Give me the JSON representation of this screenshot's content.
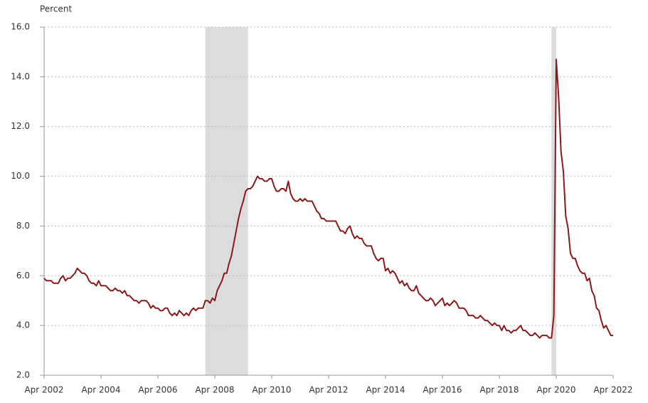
{
  "chart_data": {
    "type": "line",
    "y_axis_label": "Percent",
    "ylim": [
      2,
      16
    ],
    "yticks": [
      {
        "value": 2,
        "label": "2.0"
      },
      {
        "value": 4,
        "label": "4.0"
      },
      {
        "value": 6,
        "label": "6.0"
      },
      {
        "value": 8,
        "label": "8.0"
      },
      {
        "value": 10,
        "label": "10.0"
      },
      {
        "value": 12,
        "label": "12.0"
      },
      {
        "value": 14,
        "label": "14.0"
      },
      {
        "value": 16,
        "label": "16.0"
      }
    ],
    "xlim": [
      "2002-04",
      "2022-04"
    ],
    "xticks": [
      {
        "value": "2002-04",
        "label": "Apr 2002"
      },
      {
        "value": "2004-04",
        "label": "Apr 2004"
      },
      {
        "value": "2006-04",
        "label": "Apr 2006"
      },
      {
        "value": "2008-04",
        "label": "Apr 2008"
      },
      {
        "value": "2010-04",
        "label": "Apr 2010"
      },
      {
        "value": "2012-04",
        "label": "Apr 2012"
      },
      {
        "value": "2014-04",
        "label": "Apr 2014"
      },
      {
        "value": "2016-04",
        "label": "Apr 2016"
      },
      {
        "value": "2018-04",
        "label": "Apr 2018"
      },
      {
        "value": "2020-04",
        "label": "Apr 2020"
      },
      {
        "value": "2022-04",
        "label": "Apr 2022"
      }
    ],
    "grid": true,
    "recessions": [
      [
        "2007-12",
        "2009-06"
      ],
      [
        "2020-02",
        "2020-04"
      ]
    ],
    "recession_color": "#dcdcdc",
    "x": [
      "2002-04",
      "2002-05",
      "2002-06",
      "2002-07",
      "2002-08",
      "2002-09",
      "2002-10",
      "2002-11",
      "2002-12",
      "2003-01",
      "2003-02",
      "2003-03",
      "2003-04",
      "2003-05",
      "2003-06",
      "2003-07",
      "2003-08",
      "2003-09",
      "2003-10",
      "2003-11",
      "2003-12",
      "2004-01",
      "2004-02",
      "2004-03",
      "2004-04",
      "2004-05",
      "2004-06",
      "2004-07",
      "2004-08",
      "2004-09",
      "2004-10",
      "2004-11",
      "2004-12",
      "2005-01",
      "2005-02",
      "2005-03",
      "2005-04",
      "2005-05",
      "2005-06",
      "2005-07",
      "2005-08",
      "2005-09",
      "2005-10",
      "2005-11",
      "2005-12",
      "2006-01",
      "2006-02",
      "2006-03",
      "2006-04",
      "2006-05",
      "2006-06",
      "2006-07",
      "2006-08",
      "2006-09",
      "2006-10",
      "2006-11",
      "2006-12",
      "2007-01",
      "2007-02",
      "2007-03",
      "2007-04",
      "2007-05",
      "2007-06",
      "2007-07",
      "2007-08",
      "2007-09",
      "2007-10",
      "2007-11",
      "2007-12",
      "2008-01",
      "2008-02",
      "2008-03",
      "2008-04",
      "2008-05",
      "2008-06",
      "2008-07",
      "2008-08",
      "2008-09",
      "2008-10",
      "2008-11",
      "2008-12",
      "2009-01",
      "2009-02",
      "2009-03",
      "2009-04",
      "2009-05",
      "2009-06",
      "2009-07",
      "2009-08",
      "2009-09",
      "2009-10",
      "2009-11",
      "2009-12",
      "2010-01",
      "2010-02",
      "2010-03",
      "2010-04",
      "2010-05",
      "2010-06",
      "2010-07",
      "2010-08",
      "2010-09",
      "2010-10",
      "2010-11",
      "2010-12",
      "2011-01",
      "2011-02",
      "2011-03",
      "2011-04",
      "2011-05",
      "2011-06",
      "2011-07",
      "2011-08",
      "2011-09",
      "2011-10",
      "2011-11",
      "2011-12",
      "2012-01",
      "2012-02",
      "2012-03",
      "2012-04",
      "2012-05",
      "2012-06",
      "2012-07",
      "2012-08",
      "2012-09",
      "2012-10",
      "2012-11",
      "2012-12",
      "2013-01",
      "2013-02",
      "2013-03",
      "2013-04",
      "2013-05",
      "2013-06",
      "2013-07",
      "2013-08",
      "2013-09",
      "2013-10",
      "2013-11",
      "2013-12",
      "2014-01",
      "2014-02",
      "2014-03",
      "2014-04",
      "2014-05",
      "2014-06",
      "2014-07",
      "2014-08",
      "2014-09",
      "2014-10",
      "2014-11",
      "2014-12",
      "2015-01",
      "2015-02",
      "2015-03",
      "2015-04",
      "2015-05",
      "2015-06",
      "2015-07",
      "2015-08",
      "2015-09",
      "2015-10",
      "2015-11",
      "2015-12",
      "2016-01",
      "2016-02",
      "2016-03",
      "2016-04",
      "2016-05",
      "2016-06",
      "2016-07",
      "2016-08",
      "2016-09",
      "2016-10",
      "2016-11",
      "2016-12",
      "2017-01",
      "2017-02",
      "2017-03",
      "2017-04",
      "2017-05",
      "2017-06",
      "2017-07",
      "2017-08",
      "2017-09",
      "2017-10",
      "2017-11",
      "2017-12",
      "2018-01",
      "2018-02",
      "2018-03",
      "2018-04",
      "2018-05",
      "2018-06",
      "2018-07",
      "2018-08",
      "2018-09",
      "2018-10",
      "2018-11",
      "2018-12",
      "2019-01",
      "2019-02",
      "2019-03",
      "2019-04",
      "2019-05",
      "2019-06",
      "2019-07",
      "2019-08",
      "2019-09",
      "2019-10",
      "2019-11",
      "2019-12",
      "2020-01",
      "2020-02",
      "2020-03",
      "2020-04",
      "2020-05",
      "2020-06",
      "2020-07",
      "2020-08",
      "2020-09",
      "2020-10",
      "2020-11",
      "2020-12",
      "2021-01",
      "2021-02",
      "2021-03",
      "2021-04",
      "2021-05",
      "2021-06",
      "2021-07",
      "2021-08",
      "2021-09",
      "2021-10",
      "2021-11",
      "2021-12",
      "2022-01",
      "2022-02",
      "2022-03",
      "2022-04"
    ],
    "series": [
      {
        "color": "#8b1a1a",
        "values": [
          5.9,
          5.8,
          5.8,
          5.8,
          5.7,
          5.7,
          5.7,
          5.9,
          6.0,
          5.8,
          5.9,
          5.9,
          6.0,
          6.1,
          6.3,
          6.2,
          6.1,
          6.1,
          6.0,
          5.8,
          5.7,
          5.7,
          5.6,
          5.8,
          5.6,
          5.6,
          5.6,
          5.5,
          5.4,
          5.4,
          5.5,
          5.4,
          5.4,
          5.3,
          5.4,
          5.2,
          5.2,
          5.1,
          5.0,
          5.0,
          4.9,
          5.0,
          5.0,
          5.0,
          4.9,
          4.7,
          4.8,
          4.7,
          4.7,
          4.6,
          4.6,
          4.7,
          4.7,
          4.5,
          4.4,
          4.5,
          4.4,
          4.6,
          4.5,
          4.4,
          4.5,
          4.4,
          4.6,
          4.7,
          4.6,
          4.7,
          4.7,
          4.7,
          5.0,
          5.0,
          4.9,
          5.1,
          5.0,
          5.4,
          5.6,
          5.8,
          6.1,
          6.1,
          6.5,
          6.8,
          7.3,
          7.8,
          8.3,
          8.7,
          9.0,
          9.4,
          9.5,
          9.5,
          9.6,
          9.8,
          10.0,
          9.9,
          9.9,
          9.8,
          9.8,
          9.9,
          9.9,
          9.6,
          9.4,
          9.4,
          9.5,
          9.5,
          9.4,
          9.8,
          9.3,
          9.1,
          9.0,
          9.0,
          9.1,
          9.0,
          9.1,
          9.0,
          9.0,
          9.0,
          8.8,
          8.6,
          8.5,
          8.3,
          8.3,
          8.2,
          8.2,
          8.2,
          8.2,
          8.2,
          8.0,
          7.8,
          7.8,
          7.7,
          7.9,
          8.0,
          7.7,
          7.5,
          7.6,
          7.5,
          7.5,
          7.3,
          7.2,
          7.2,
          7.2,
          6.9,
          6.7,
          6.6,
          6.7,
          6.7,
          6.2,
          6.3,
          6.1,
          6.2,
          6.1,
          5.9,
          5.7,
          5.8,
          5.6,
          5.7,
          5.5,
          5.4,
          5.4,
          5.6,
          5.3,
          5.2,
          5.1,
          5.0,
          5.0,
          5.1,
          5.0,
          4.8,
          4.9,
          5.0,
          5.1,
          4.8,
          4.9,
          4.8,
          4.9,
          5.0,
          4.9,
          4.7,
          4.7,
          4.7,
          4.6,
          4.4,
          4.4,
          4.4,
          4.3,
          4.3,
          4.4,
          4.3,
          4.2,
          4.2,
          4.1,
          4.0,
          4.1,
          4.0,
          4.0,
          3.8,
          4.0,
          3.8,
          3.8,
          3.7,
          3.8,
          3.8,
          3.9,
          4.0,
          3.8,
          3.8,
          3.7,
          3.6,
          3.6,
          3.7,
          3.6,
          3.5,
          3.6,
          3.6,
          3.6,
          3.5,
          3.5,
          4.4,
          14.7,
          13.2,
          11.0,
          10.2,
          8.4,
          7.9,
          6.9,
          6.7,
          6.7,
          6.4,
          6.2,
          6.1,
          6.1,
          5.8,
          5.9,
          5.4,
          5.2,
          4.7,
          4.6,
          4.2,
          3.9,
          4.0,
          3.8,
          3.6,
          3.6
        ]
      }
    ]
  }
}
